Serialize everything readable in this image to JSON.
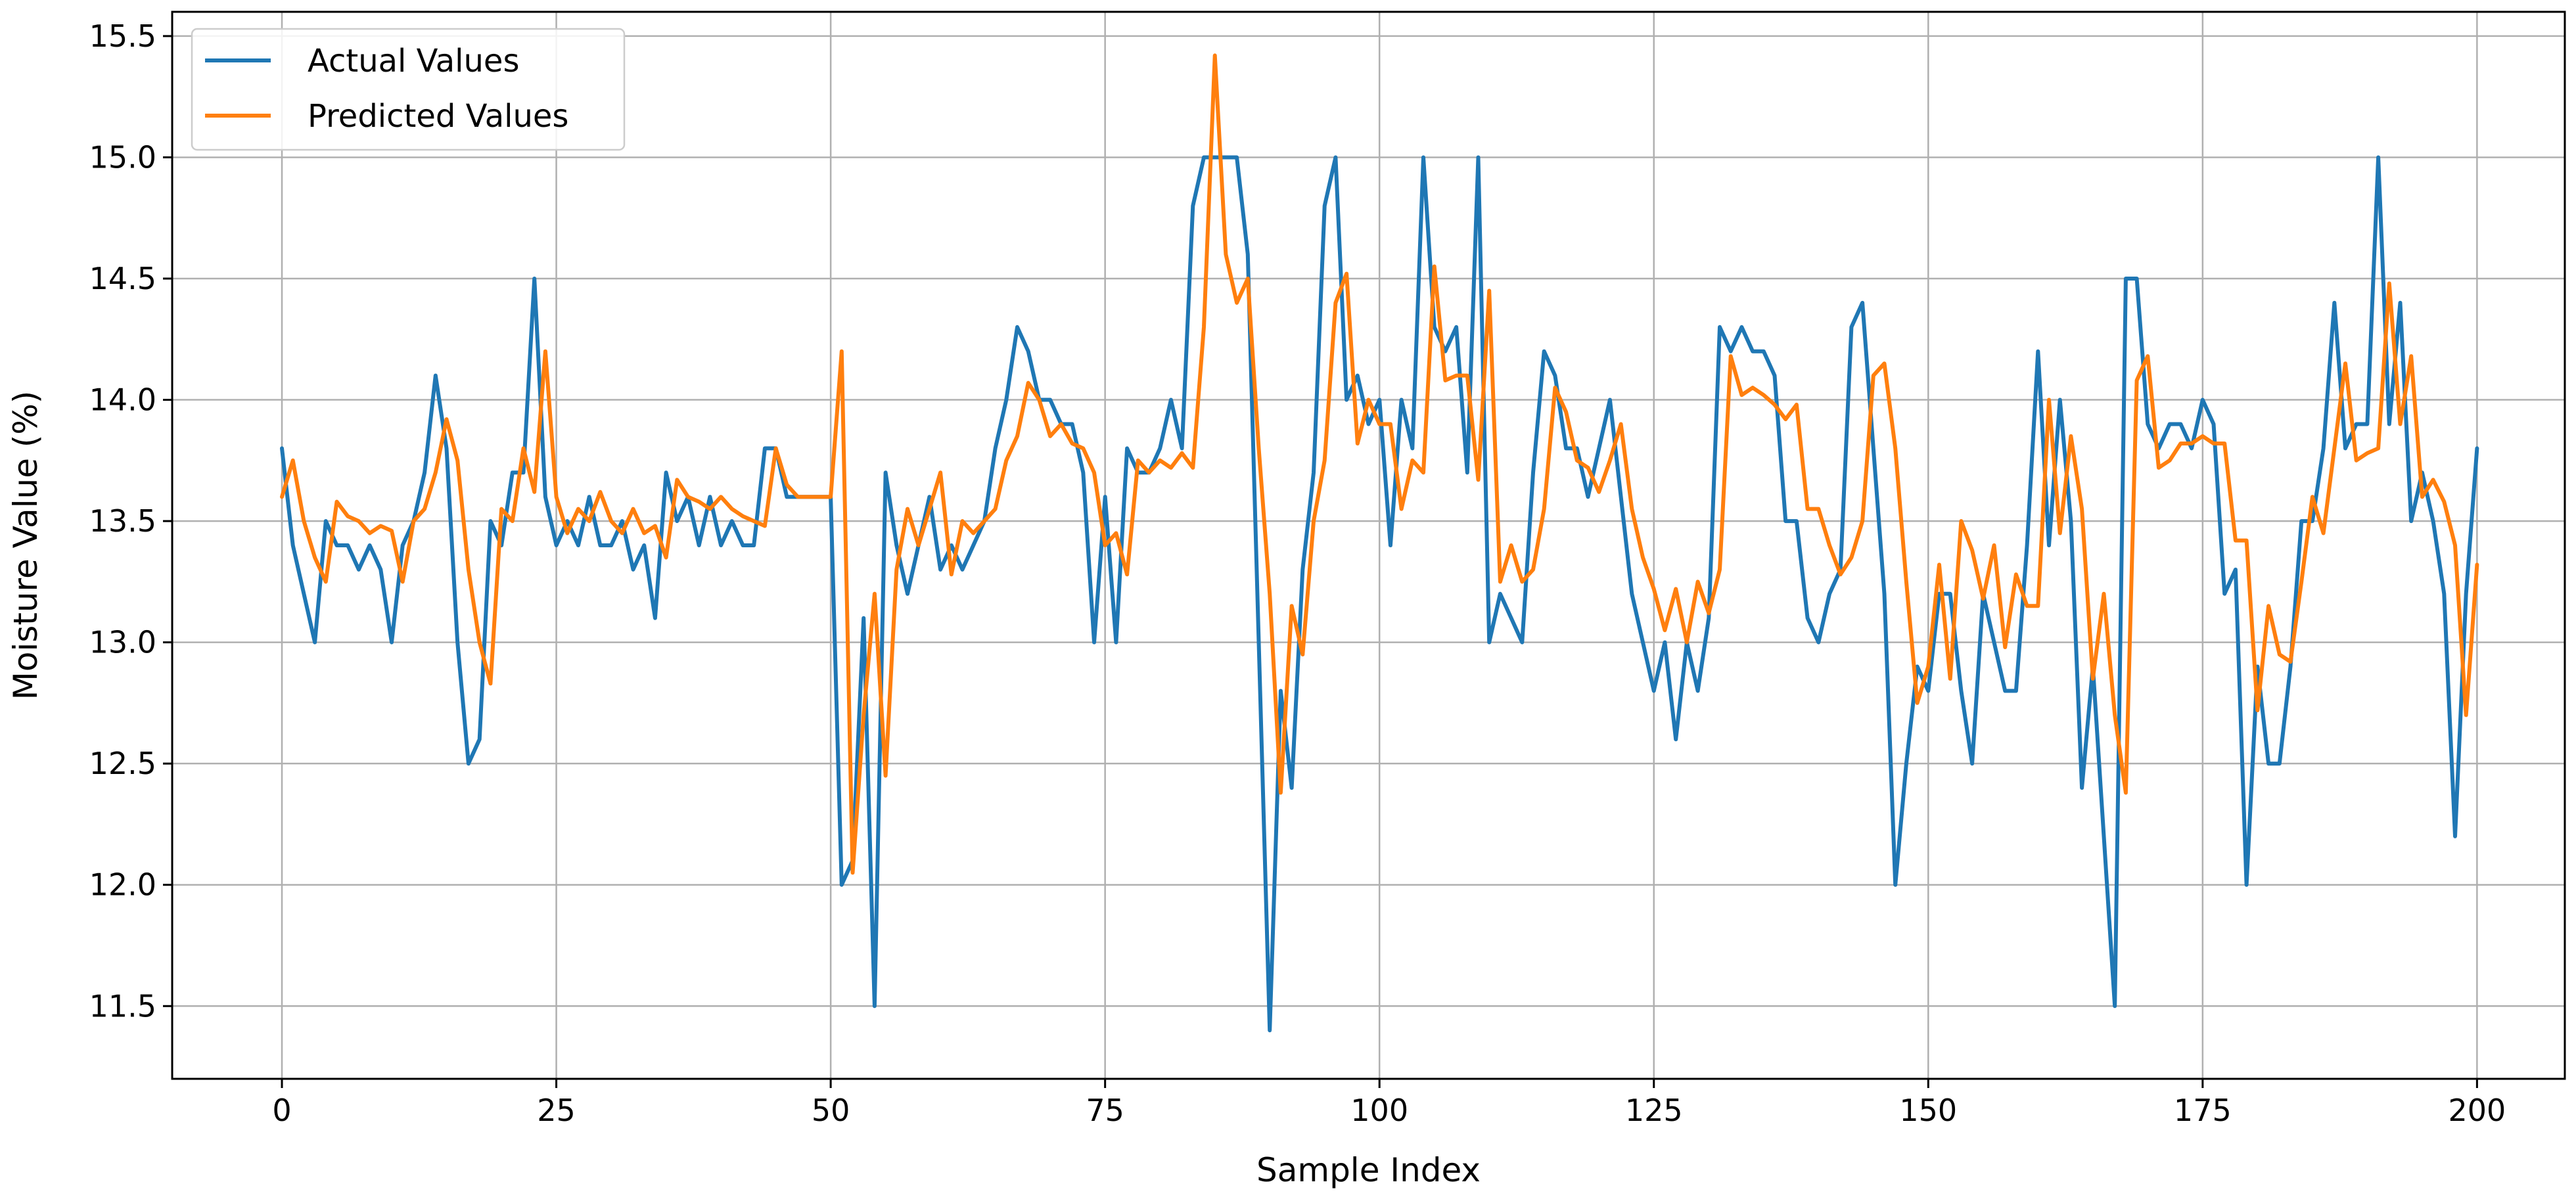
{
  "chart_data": {
    "type": "line",
    "xlabel": "Sample Index",
    "ylabel": "Moisture Value (%)",
    "xlim": [
      -10,
      208
    ],
    "ylim": [
      11.2,
      15.6
    ],
    "xticks": [
      0,
      25,
      50,
      75,
      100,
      125,
      150,
      175,
      200
    ],
    "xtick_labels": [
      "0",
      "25",
      "50",
      "75",
      "100",
      "125",
      "150",
      "175",
      "200"
    ],
    "yticks": [
      11.5,
      12.0,
      12.5,
      13.0,
      13.5,
      14.0,
      14.5,
      15.0,
      15.5
    ],
    "ytick_labels": [
      "11.5",
      "12.0",
      "12.5",
      "13.0",
      "13.5",
      "14.0",
      "14.5",
      "15.0",
      "15.5"
    ],
    "grid": true,
    "legend_position": "top-left",
    "series": [
      {
        "name": "Actual Values",
        "color": "#1f77b4",
        "values": [
          13.8,
          13.4,
          13.2,
          13.0,
          13.5,
          13.4,
          13.4,
          13.3,
          13.4,
          13.3,
          13.0,
          13.4,
          13.5,
          13.7,
          14.1,
          13.8,
          13.0,
          12.5,
          12.6,
          13.5,
          13.4,
          13.7,
          13.7,
          14.5,
          13.6,
          13.4,
          13.5,
          13.4,
          13.6,
          13.4,
          13.4,
          13.5,
          13.3,
          13.4,
          13.1,
          13.7,
          13.5,
          13.6,
          13.4,
          13.6,
          13.4,
          13.5,
          13.4,
          13.4,
          13.8,
          13.8,
          13.6,
          13.6,
          13.6,
          13.6,
          13.6,
          12.0,
          12.1,
          13.1,
          11.5,
          13.7,
          13.4,
          13.2,
          13.4,
          13.6,
          13.3,
          13.4,
          13.3,
          13.4,
          13.5,
          13.8,
          14.0,
          14.3,
          14.2,
          14.0,
          14.0,
          13.9,
          13.9,
          13.7,
          13.0,
          13.6,
          13.0,
          13.8,
          13.7,
          13.7,
          13.8,
          14.0,
          13.8,
          14.8,
          15.0,
          15.0,
          15.0,
          15.0,
          14.6,
          13.0,
          11.4,
          12.8,
          12.4,
          13.3,
          13.7,
          14.8,
          15.0,
          14.0,
          14.1,
          13.9,
          14.0,
          13.4,
          14.0,
          13.8,
          15.0,
          14.3,
          14.2,
          14.3,
          13.7,
          15.0,
          13.0,
          13.2,
          13.1,
          13.0,
          13.7,
          14.2,
          14.1,
          13.8,
          13.8,
          13.6,
          13.8,
          14.0,
          13.6,
          13.2,
          13.0,
          12.8,
          13.0,
          12.6,
          13.0,
          12.8,
          13.1,
          14.3,
          14.2,
          14.3,
          14.2,
          14.2,
          14.1,
          13.5,
          13.5,
          13.1,
          13.0,
          13.2,
          13.3,
          14.3,
          14.4,
          13.8,
          13.2,
          12.0,
          12.5,
          12.9,
          12.8,
          13.2,
          13.2,
          12.8,
          12.5,
          13.2,
          13.0,
          12.8,
          12.8,
          13.4,
          14.2,
          13.4,
          14.0,
          13.5,
          12.4,
          12.9,
          12.2,
          11.5,
          14.5,
          14.5,
          13.9,
          13.8,
          13.9,
          13.9,
          13.8,
          14.0,
          13.9,
          13.2,
          13.3,
          12.0,
          12.9,
          12.5,
          12.5,
          12.9,
          13.5,
          13.5,
          13.8,
          14.4,
          13.8,
          13.9,
          13.9,
          15.0,
          13.9,
          14.4,
          13.5,
          13.7,
          13.5,
          13.2,
          12.2,
          13.2,
          13.8
        ]
      },
      {
        "name": "Predicted Values",
        "color": "#ff7f0e",
        "values": [
          13.6,
          13.75,
          13.5,
          13.35,
          13.25,
          13.58,
          13.52,
          13.5,
          13.45,
          13.48,
          13.46,
          13.25,
          13.5,
          13.55,
          13.7,
          13.92,
          13.75,
          13.3,
          13.0,
          12.83,
          13.55,
          13.5,
          13.8,
          13.62,
          14.2,
          13.6,
          13.45,
          13.55,
          13.5,
          13.62,
          13.5,
          13.45,
          13.55,
          13.45,
          13.48,
          13.35,
          13.67,
          13.6,
          13.58,
          13.55,
          13.6,
          13.55,
          13.52,
          13.5,
          13.48,
          13.8,
          13.65,
          13.6,
          13.6,
          13.6,
          13.6,
          14.2,
          12.05,
          12.7,
          13.2,
          12.45,
          13.3,
          13.55,
          13.4,
          13.55,
          13.7,
          13.28,
          13.5,
          13.45,
          13.5,
          13.55,
          13.75,
          13.85,
          14.07,
          14.0,
          13.85,
          13.9,
          13.82,
          13.8,
          13.7,
          13.4,
          13.45,
          13.28,
          13.75,
          13.7,
          13.75,
          13.72,
          13.78,
          13.72,
          14.3,
          15.42,
          14.6,
          14.4,
          14.5,
          13.8,
          13.2,
          12.38,
          13.15,
          12.95,
          13.5,
          13.75,
          14.4,
          14.52,
          13.82,
          14.0,
          13.9,
          13.9,
          13.55,
          13.75,
          13.7,
          14.55,
          14.08,
          14.1,
          14.1,
          13.67,
          14.45,
          13.25,
          13.4,
          13.25,
          13.3,
          13.55,
          14.05,
          13.95,
          13.75,
          13.72,
          13.62,
          13.75,
          13.9,
          13.55,
          13.35,
          13.22,
          13.05,
          13.22,
          13.0,
          13.25,
          13.12,
          13.3,
          14.18,
          14.02,
          14.05,
          14.02,
          13.98,
          13.92,
          13.98,
          13.55,
          13.55,
          13.4,
          13.28,
          13.35,
          13.5,
          14.1,
          14.15,
          13.8,
          13.25,
          12.75,
          12.9,
          13.32,
          12.85,
          13.5,
          13.38,
          13.18,
          13.4,
          12.98,
          13.28,
          13.15,
          13.15,
          14.0,
          13.45,
          13.85,
          13.55,
          12.85,
          13.2,
          12.7,
          12.38,
          14.08,
          14.18,
          13.72,
          13.75,
          13.82,
          13.82,
          13.85,
          13.82,
          13.82,
          13.42,
          13.42,
          12.72,
          13.15,
          12.95,
          12.92,
          13.25,
          13.6,
          13.45,
          13.8,
          14.15,
          13.75,
          13.78,
          13.8,
          14.48,
          13.9,
          14.18,
          13.6,
          13.67,
          13.58,
          13.4,
          12.7,
          13.32
        ]
      }
    ]
  }
}
